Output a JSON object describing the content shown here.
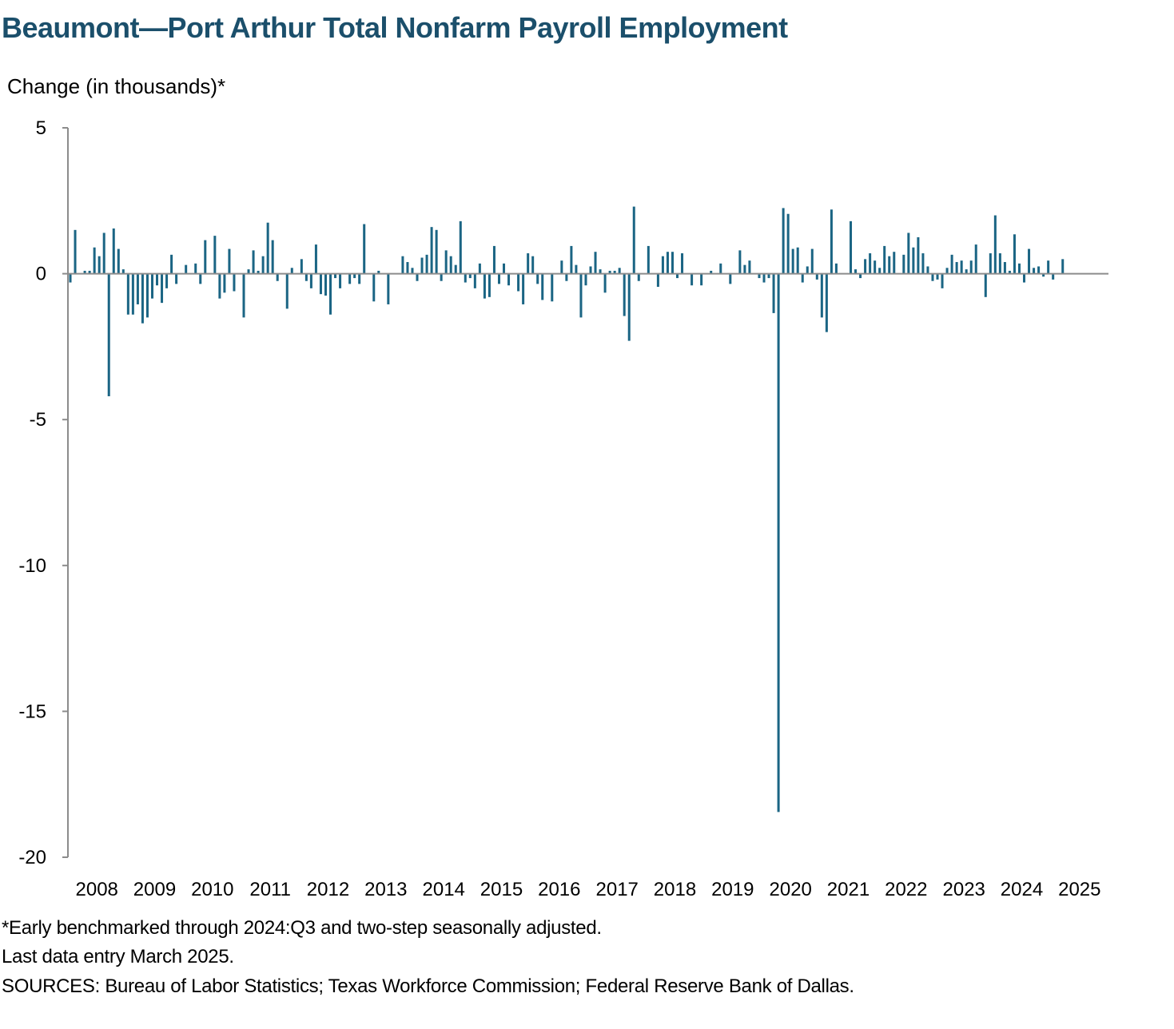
{
  "chart_data": {
    "type": "bar",
    "title": "Beaumont—Port Arthur Total Nonfarm Payroll Employment",
    "ylabel": "Change (in thousands)*",
    "xlabel": "",
    "ylim": [
      -20,
      5
    ],
    "yticks": [
      "5",
      "0",
      "-5",
      "-10",
      "-15",
      "-20"
    ],
    "ytick_values": [
      5,
      0,
      -5,
      -10,
      -15,
      -20
    ],
    "year_labels": [
      "2008",
      "2009",
      "2010",
      "2011",
      "2012",
      "2013",
      "2014",
      "2015",
      "2016",
      "2017",
      "2018",
      "2019",
      "2020",
      "2021",
      "2022",
      "2023",
      "2024",
      "2025"
    ],
    "start": "2008-01",
    "end": "2025-03",
    "bar_color": "#1b6584",
    "series": [
      {
        "name": "Monthly change",
        "values": [
          -0.3,
          1.5,
          0.0,
          0.1,
          0.1,
          0.9,
          0.6,
          1.4,
          -4.2,
          1.55,
          0.85,
          0.15,
          -1.4,
          -1.4,
          -1.05,
          -1.7,
          -1.5,
          -0.85,
          -0.4,
          -1.0,
          -0.5,
          0.65,
          -0.35,
          0.0,
          0.3,
          0.0,
          0.35,
          -0.35,
          1.15,
          0.0,
          1.3,
          -0.85,
          -0.65,
          0.85,
          -0.6,
          0.0,
          -1.5,
          0.15,
          0.8,
          0.1,
          0.6,
          1.75,
          1.15,
          -0.25,
          0.0,
          -1.2,
          0.2,
          0.0,
          0.5,
          -0.25,
          -0.5,
          1.0,
          -0.7,
          -0.75,
          -1.4,
          -0.15,
          -0.5,
          0.0,
          -0.35,
          -0.15,
          -0.35,
          1.7,
          0.0,
          -0.95,
          0.1,
          0.0,
          -1.05,
          0.0,
          0.0,
          0.6,
          0.4,
          0.2,
          -0.25,
          0.55,
          0.65,
          1.6,
          1.5,
          -0.25,
          0.8,
          0.6,
          0.3,
          1.8,
          -0.3,
          -0.15,
          -0.5,
          0.35,
          -0.85,
          -0.8,
          0.95,
          -0.35,
          0.35,
          -0.4,
          0.0,
          -0.6,
          -1.05,
          0.7,
          0.6,
          -0.35,
          -0.9,
          0.0,
          -0.95,
          0.0,
          0.45,
          -0.25,
          0.95,
          0.3,
          -1.5,
          -0.4,
          0.25,
          0.75,
          0.15,
          -0.65,
          0.1,
          0.1,
          0.2,
          -1.45,
          -2.3,
          2.3,
          -0.25,
          0.0,
          0.95,
          0.0,
          -0.45,
          0.6,
          0.75,
          0.75,
          -0.15,
          0.7,
          0.0,
          -0.4,
          0.0,
          -0.4,
          0.0,
          0.1,
          0.0,
          0.35,
          0.0,
          -0.35,
          0.0,
          0.8,
          0.3,
          0.45,
          0.0,
          -0.15,
          -0.3,
          -0.15,
          -1.35,
          -18.45,
          2.25,
          2.05,
          0.85,
          0.9,
          -0.3,
          0.25,
          0.85,
          -0.2,
          -1.5,
          -2.0,
          2.2,
          0.35,
          0.0,
          0.0,
          1.8,
          0.15,
          -0.15,
          0.5,
          0.7,
          0.45,
          0.2,
          0.95,
          0.6,
          0.75,
          0.0,
          0.65,
          1.4,
          0.9,
          1.25,
          0.7,
          0.25,
          -0.25,
          -0.2,
          -0.5,
          0.2,
          0.65,
          0.4,
          0.45,
          0.15,
          0.45,
          1.0,
          0.0,
          -0.8,
          0.7,
          2.0,
          0.7,
          0.4,
          0.1,
          1.35,
          0.35,
          -0.3,
          0.85,
          0.2,
          0.25,
          -0.1,
          0.45,
          -0.2,
          0.0,
          0.5
        ]
      }
    ]
  },
  "notes": {
    "line1": "*Early benchmarked through 2024:Q3 and two-step seasonally adjusted.",
    "line2": "Last data entry March 2025.",
    "line3": "SOURCES: Bureau of Labor Statistics; Texas Workforce Commission; Federal Reserve Bank of Dallas."
  }
}
